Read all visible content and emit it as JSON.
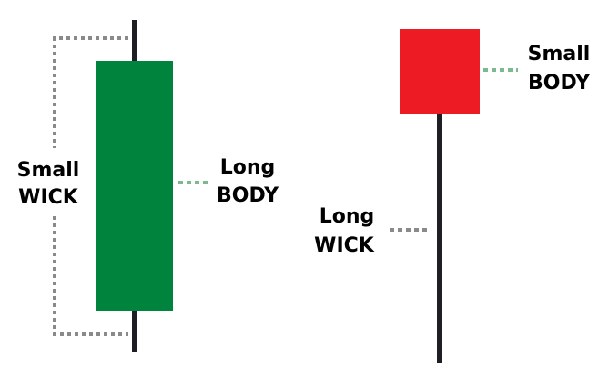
{
  "colors": {
    "bullish_body": "#00843d",
    "bearish_body": "#ed1c24",
    "wick": "#1e1e24",
    "bracket": "#8a8a8a",
    "body_leader": "#7cb98f"
  },
  "left_candle": {
    "wick_label": {
      "line1": "Small",
      "line2": "WICK"
    },
    "body_label": {
      "line1": "Long",
      "line2": "BODY"
    }
  },
  "right_candle": {
    "body_label": {
      "line1": "Small",
      "line2": "BODY"
    },
    "wick_label": {
      "line1": "Long",
      "line2": "WICK"
    }
  }
}
